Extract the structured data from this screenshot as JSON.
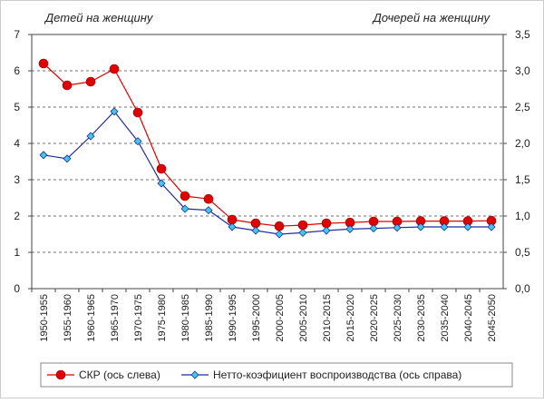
{
  "chart_data": {
    "type": "line",
    "y_label": "Детей на женщину",
    "y2_label": "Дочерей на женщину",
    "categories": [
      "1950-1955",
      "1955-1960",
      "1960-1965",
      "1965-1970",
      "1970-1975",
      "1975-1980",
      "1980-1985",
      "1985-1990",
      "1990-1995",
      "1995-2000",
      "2000-2005",
      "2005-2010",
      "2010-2015",
      "2015-2020",
      "2020-2025",
      "2025-2030",
      "2030-2035",
      "2035-2040",
      "2040-2045",
      "2045-2050"
    ],
    "series": [
      {
        "name": "СКР (ось слева)",
        "color": "#e00000",
        "marker": "circle",
        "axis": "y",
        "values": [
          6.2,
          5.6,
          5.7,
          6.05,
          4.85,
          3.3,
          2.55,
          2.47,
          1.9,
          1.8,
          1.72,
          1.75,
          1.8,
          1.82,
          1.85,
          1.85,
          1.86,
          1.86,
          1.86,
          1.87
        ]
      },
      {
        "name": "Нетто-коэфициент воспроизводства (ось справа)",
        "color": "#1f2f9f",
        "marker": "diamond",
        "axis": "y2",
        "values": [
          1.84,
          1.79,
          2.1,
          2.44,
          2.03,
          1.45,
          1.1,
          1.08,
          0.85,
          0.8,
          0.75,
          0.77,
          0.8,
          0.82,
          0.83,
          0.84,
          0.85,
          0.85,
          0.85,
          0.85
        ]
      }
    ],
    "ylim": [
      0,
      7
    ],
    "yticks": [
      0,
      1,
      2,
      3,
      4,
      5,
      6,
      7
    ],
    "y2lim": [
      0,
      3.5
    ],
    "y2ticks": [
      {
        "value": 0,
        "label": "0,0"
      },
      {
        "value": 0.5,
        "label": "0,5"
      },
      {
        "value": 1,
        "label": "1,0"
      },
      {
        "value": 1.5,
        "label": "1,5"
      },
      {
        "value": 2,
        "label": "2,0"
      },
      {
        "value": 2.5,
        "label": "2,5"
      },
      {
        "value": 3,
        "label": "3,0"
      },
      {
        "value": 3.5,
        "label": "3,5"
      }
    ],
    "grid": true
  }
}
